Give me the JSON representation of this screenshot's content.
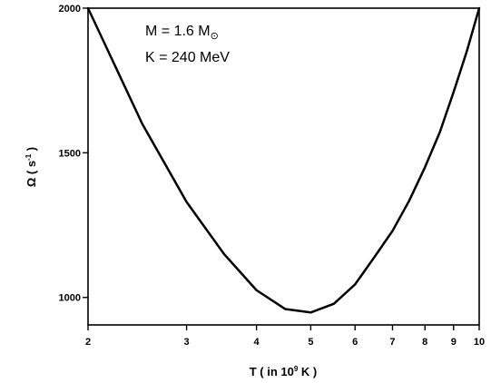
{
  "chart_data": {
    "type": "line",
    "title": "",
    "x_scale": "log",
    "xlim": [
      2,
      10
    ],
    "ylim": [
      905,
      2000
    ],
    "grid": false,
    "x_ticks": [
      2,
      3,
      4,
      5,
      6,
      7,
      8,
      9,
      10
    ],
    "y_ticks": [
      1000,
      1500,
      2000
    ],
    "xlabel": {
      "prefix": "T ( in 10",
      "sup": "9",
      "suffix": " K )"
    },
    "ylabel": {
      "main": "Ω ( s",
      "sup": "-1",
      "suffix": " )"
    },
    "annotations": {
      "mass_prefix": "M = 1.6 M",
      "mass_sub": "⊙",
      "k_text": "K = 240 MeV"
    },
    "series": [
      {
        "x": [
          2,
          2.5,
          3,
          3.5,
          4,
          4.5,
          5,
          5.5,
          6,
          6.5,
          7,
          7.5,
          8,
          8.5,
          9,
          9.5,
          10
        ],
        "y": [
          2000,
          1600,
          1330,
          1150,
          1025,
          960,
          948,
          978,
          1045,
          1140,
          1230,
          1335,
          1450,
          1570,
          1710,
          1850,
          2000
        ]
      }
    ]
  }
}
